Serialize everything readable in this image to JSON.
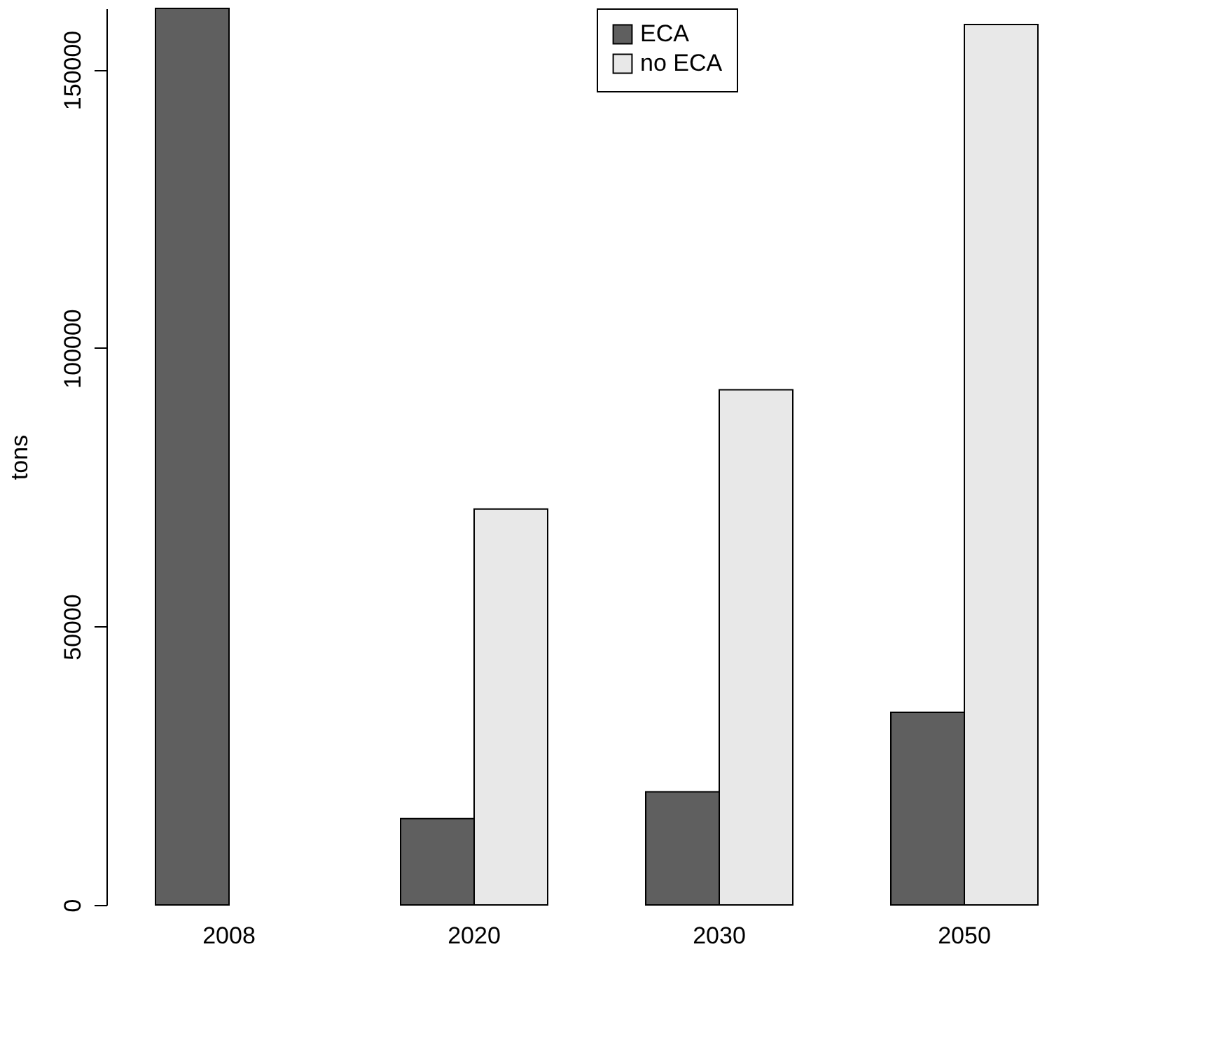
{
  "chart_data": {
    "type": "bar",
    "ylabel": "tons",
    "categories": [
      "2008",
      "2020",
      "2030",
      "2050"
    ],
    "series": [
      {
        "name": "ECA",
        "color": "#5f5f5f",
        "values": [
          161000,
          15500,
          20300,
          34600
        ]
      },
      {
        "name": "no ECA",
        "color": "#e8e8e8",
        "values": [
          null,
          71100,
          92500,
          158100
        ]
      }
    ],
    "ylim": [
      0,
      161000
    ],
    "yticks": [
      0,
      50000,
      100000,
      150000
    ],
    "grid": false,
    "legend": "top"
  }
}
